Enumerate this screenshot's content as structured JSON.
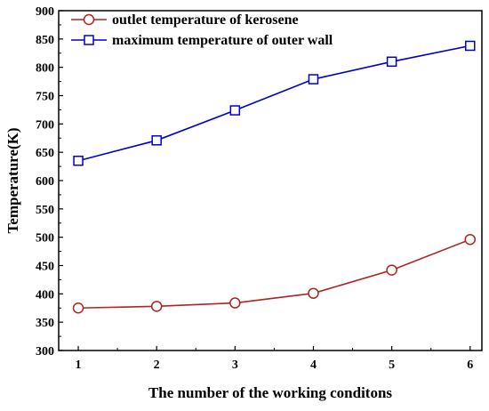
{
  "chart_data": {
    "type": "line",
    "xlabel": "The number of the working conditons",
    "ylabel": "Temperature(K)",
    "x": [
      1,
      2,
      3,
      4,
      5,
      6
    ],
    "xlim": [
      0.75,
      6.15
    ],
    "ylim": [
      300,
      900
    ],
    "yticks": [
      300,
      350,
      400,
      450,
      500,
      550,
      600,
      650,
      700,
      750,
      800,
      850,
      900
    ],
    "xticks": [
      1,
      2,
      3,
      4,
      5,
      6
    ],
    "legend_position": "top-left",
    "grid": false,
    "series": [
      {
        "name": "outlet temperature of kerosene",
        "values": [
          375,
          378,
          384,
          401,
          442,
          496
        ],
        "color": "#b22222",
        "marker": "circle"
      },
      {
        "name": "maximum temperature of outer wall",
        "values": [
          635,
          671,
          724,
          779,
          810,
          838
        ],
        "color": "#0000cc",
        "marker": "square"
      }
    ]
  }
}
